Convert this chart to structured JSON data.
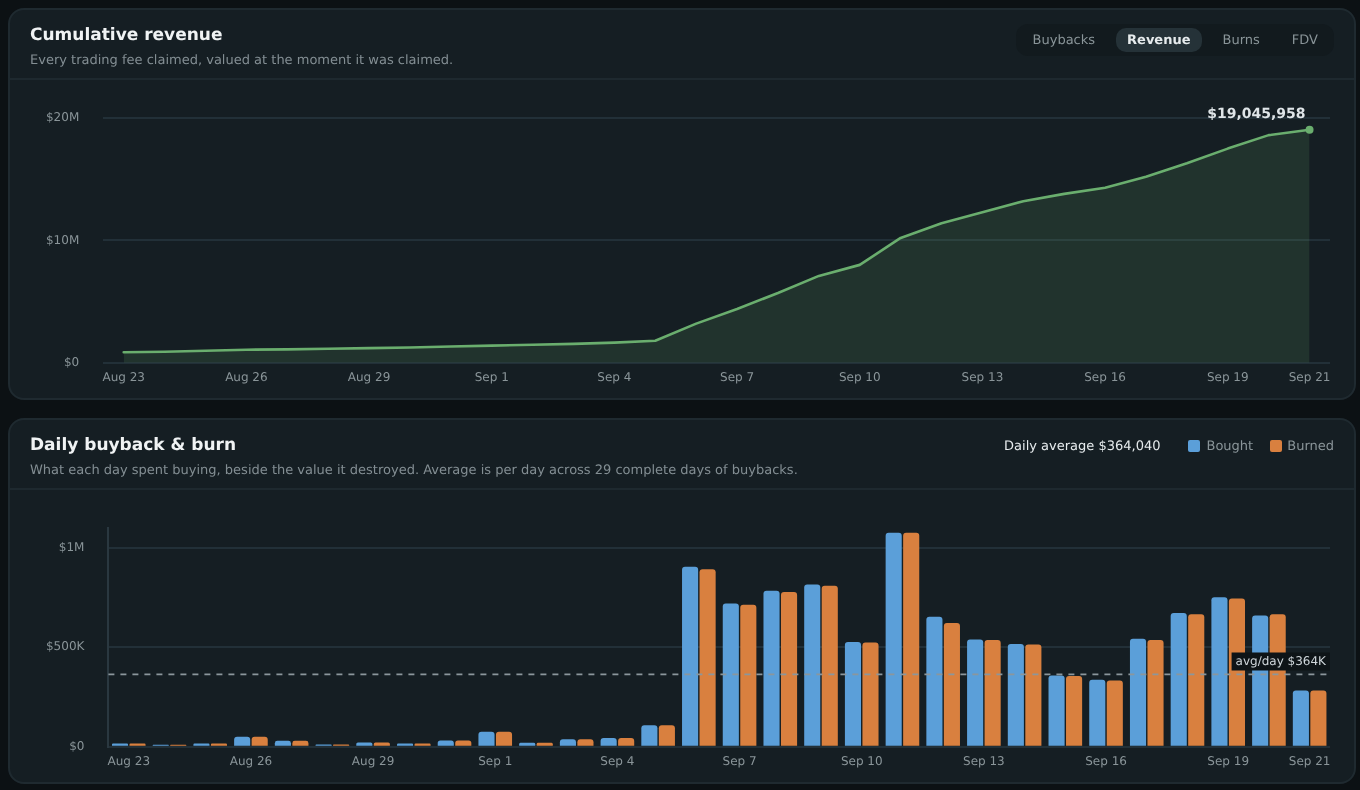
{
  "chart_data": [
    {
      "type": "area",
      "title": "Cumulative revenue",
      "subtitle": "Every trading fee claimed, valued at the moment it was claimed.",
      "categories": [
        "Aug 23",
        null,
        null,
        "Aug 26",
        null,
        null,
        "Aug 29",
        null,
        null,
        "Sep 1",
        null,
        null,
        "Sep 4",
        null,
        null,
        "Sep 7",
        null,
        null,
        "Sep 10",
        null,
        null,
        "Sep 13",
        null,
        null,
        "Sep 16",
        null,
        null,
        "Sep 19",
        null,
        "Sep 21"
      ],
      "values": [
        860000,
        900000,
        980000,
        1070000,
        1100000,
        1150000,
        1200000,
        1250000,
        1330000,
        1400000,
        1480000,
        1550000,
        1650000,
        1800000,
        3200000,
        4400000,
        5700000,
        7100000,
        8000000,
        10200000,
        11400000,
        12300000,
        13200000,
        13800000,
        14300000,
        15200000,
        16300000,
        17500000,
        18600000,
        19045958
      ],
      "color": "#6aae6e",
      "ylim": [
        0,
        20000000
      ],
      "yticks": [
        {
          "value": 0,
          "label": "$0"
        },
        {
          "value": 10000000,
          "label": "$10M"
        },
        {
          "value": 20000000,
          "label": "$20M"
        }
      ],
      "grid": "y",
      "annotations": [
        "Buybacks",
        "Revenue",
        "Burns",
        "FDV",
        {
          "text": "$19,045,958",
          "x": "Sep 21",
          "y": 19045958
        }
      ]
    },
    {
      "type": "bar",
      "title": "Daily buyback & burn",
      "subtitle": "What each day spent buying, beside the value it destroyed. Average is per day across 29 complete days of buybacks.",
      "categories": [
        "Aug 23",
        null,
        null,
        "Aug 26",
        null,
        null,
        "Aug 29",
        null,
        null,
        "Sep 1",
        null,
        null,
        "Sep 4",
        null,
        null,
        "Sep 7",
        null,
        null,
        "Sep 10",
        null,
        null,
        "Sep 13",
        null,
        null,
        "Sep 16",
        null,
        null,
        "Sep 19",
        null,
        "Sep 21"
      ],
      "series": [
        {
          "name": "Bought",
          "color": "#5b9fd9",
          "values": [
            16000,
            10000,
            16000,
            50000,
            30000,
            12000,
            22000,
            16000,
            32000,
            76000,
            20000,
            38000,
            44000,
            108000,
            905000,
            720000,
            784000,
            816000,
            527000,
            1076000,
            654000,
            540000,
            517000,
            359000,
            337000,
            543000,
            673000,
            752000,
            660000,
            283000
          ]
        },
        {
          "name": "Burned",
          "color": "#d9803f",
          "values": [
            16000,
            10000,
            16000,
            50000,
            30000,
            12000,
            22000,
            16000,
            32000,
            76000,
            20000,
            38000,
            44000,
            108000,
            892000,
            714000,
            778000,
            810000,
            524000,
            1076000,
            622000,
            537000,
            514000,
            356000,
            333000,
            537000,
            667000,
            746000,
            667000,
            283000
          ]
        }
      ],
      "ylim": [
        0,
        1100000
      ],
      "yticks": [
        {
          "value": 0,
          "label": "$0"
        },
        {
          "value": 500000,
          "label": "$500K"
        },
        {
          "value": 1000000,
          "label": "$1M"
        }
      ],
      "grid": "y",
      "legend": "top right",
      "ref_lines": [
        {
          "axis": "y",
          "value": 364040,
          "label": "avg/day $364K",
          "color": "#8b969c",
          "line_style": "dashed"
        }
      ],
      "annotations": [
        "Daily average $364,040"
      ]
    }
  ]
}
